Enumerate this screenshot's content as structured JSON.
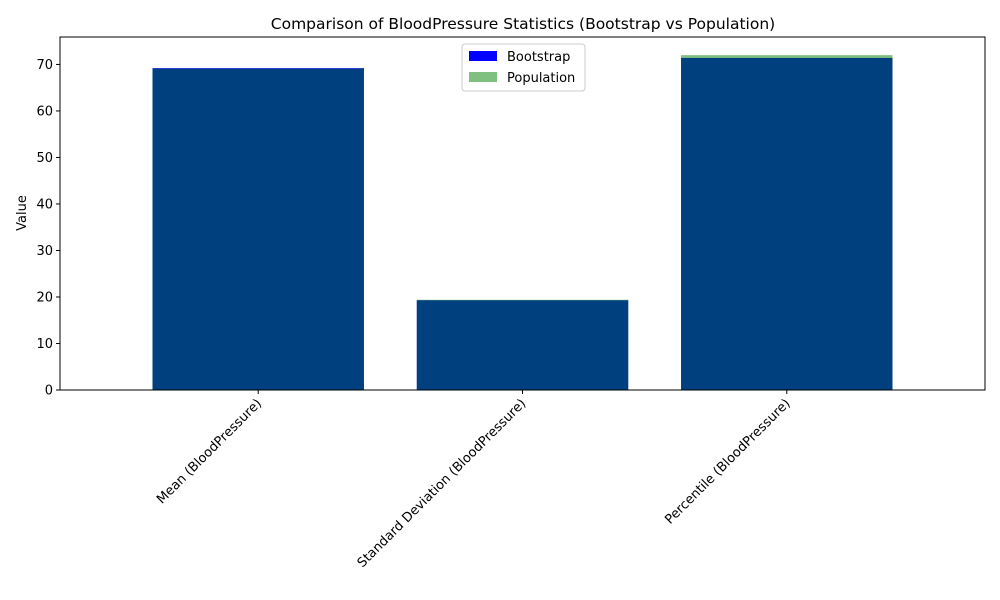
{
  "chart_data": {
    "type": "bar",
    "title": "Comparison of BloodPressure Statistics (Bootstrap vs Population)",
    "xlabel": "",
    "ylabel": "Value",
    "categories": [
      "Mean (BloodPressure)",
      "Standard Deviation (BloodPressure)",
      "Percentile (BloodPressure)"
    ],
    "series": [
      {
        "name": "Bootstrap",
        "values": [
          69.2,
          19.3,
          71.4
        ],
        "color": "#0000ff",
        "opacity": 1.0
      },
      {
        "name": "Population",
        "values": [
          69.1,
          19.4,
          72.0
        ],
        "color": "#008000",
        "opacity": 0.5
      }
    ],
    "ylim": [
      0,
      75.9
    ],
    "yticks": [
      0,
      10,
      20,
      30,
      40,
      50,
      60,
      70
    ],
    "grid": false,
    "legend": "top-center"
  }
}
